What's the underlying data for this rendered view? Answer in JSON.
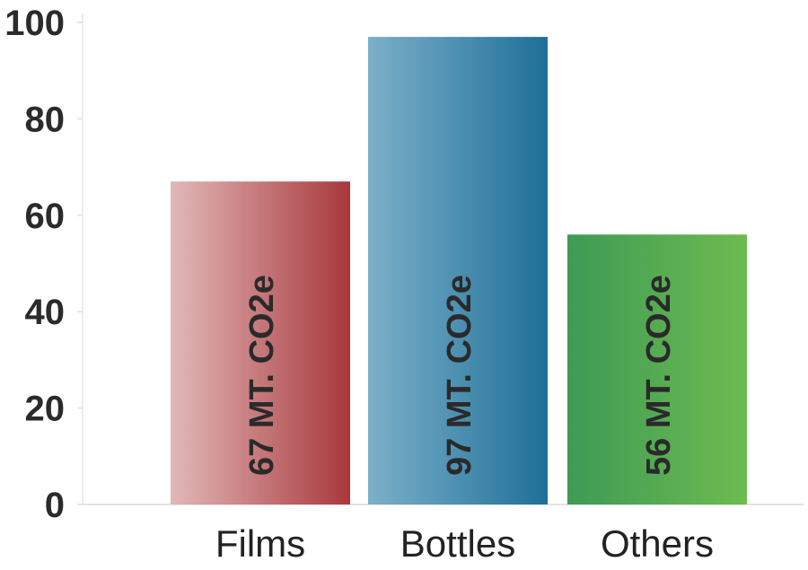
{
  "chart_data": {
    "type": "bar",
    "categories": [
      "Films",
      "Bottles",
      "Others"
    ],
    "values": [
      67,
      97,
      56
    ],
    "data_labels": [
      "67 MT. CO2e",
      "97 MT. CO2e",
      "56 MT. CO2e"
    ],
    "colors": [
      [
        "#e2b8b8",
        "#a8383c"
      ],
      [
        "#7cb0c9",
        "#1e6f98"
      ],
      [
        "#3e9a55",
        "#6dbb50"
      ]
    ],
    "ylim": [
      0,
      100
    ],
    "yticks": [
      0,
      20,
      40,
      60,
      80,
      100
    ],
    "title": "",
    "xlabel": "",
    "ylabel": "",
    "grid": false
  }
}
